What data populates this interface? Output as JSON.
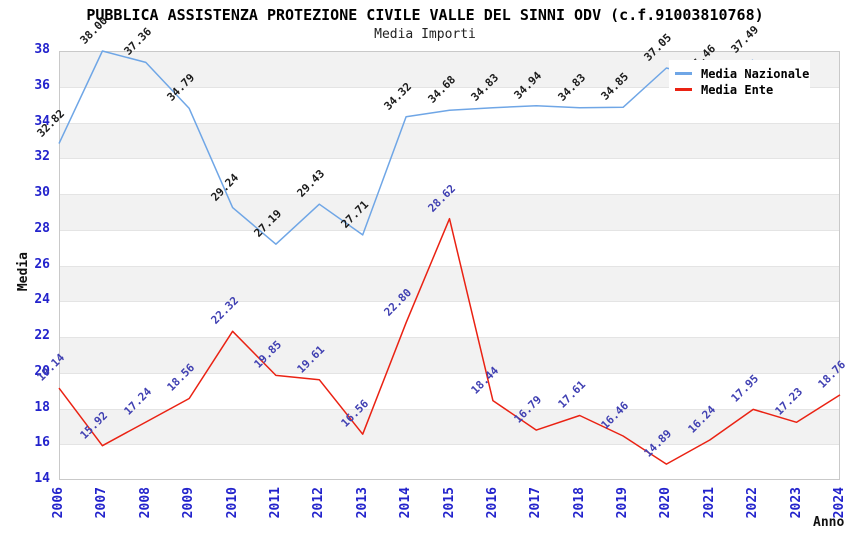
{
  "title": "PUBBLICA ASSISTENZA PROTEZIONE CIVILE VALLE DEL SINNI ODV (c.f.91003810768)",
  "subtitle": "Media Importi",
  "y_axis": {
    "label": "Media",
    "ticks": [
      38,
      36,
      34,
      32,
      30,
      28,
      26,
      24,
      22,
      20,
      18,
      16,
      14
    ]
  },
  "x_axis": {
    "label": "Anno",
    "ticks": [
      "2006",
      "2007",
      "2008",
      "2009",
      "2010",
      "2011",
      "2012",
      "2013",
      "2014",
      "2015",
      "2016",
      "2017",
      "2018",
      "2019",
      "2020",
      "2021",
      "2022",
      "2023",
      "2024"
    ]
  },
  "legend": {
    "items": [
      {
        "label": "Media Nazionale",
        "color": "#6fa6e6"
      },
      {
        "label": "Media Ente",
        "color": "#ea2213"
      }
    ]
  },
  "colors": {
    "nazionale_line": "#6fa6e6",
    "ente_line": "#ea2213",
    "tick_text": "#2323cc",
    "nazionale_label_text": "#1c1c1c",
    "ente_label_text": "#4040b2",
    "band_gray": "#f2f2f2",
    "band_white": "#ffffff"
  },
  "chart_data": {
    "type": "line",
    "title": "PUBBLICA ASSISTENZA PROTEZIONE CIVILE VALLE DEL SINNI ODV (c.f.91003810768)",
    "subtitle": "Media Importi",
    "xlabel": "Anno",
    "ylabel": "Media",
    "ylim": [
      14,
      38
    ],
    "grid": "horizontal-bands",
    "legend_position": "top-right",
    "x": [
      2006,
      2007,
      2008,
      2009,
      2010,
      2011,
      2012,
      2013,
      2014,
      2015,
      2016,
      2017,
      2018,
      2019,
      2020,
      2021,
      2022,
      2023,
      2024
    ],
    "series": [
      {
        "name": "Media Nazionale",
        "values": [
          32.82,
          38.0,
          37.36,
          34.79,
          29.24,
          27.19,
          29.43,
          27.71,
          34.32,
          34.68,
          34.83,
          34.94,
          34.83,
          34.85,
          37.05,
          36.46,
          37.49,
          null,
          null
        ]
      },
      {
        "name": "Media Ente",
        "values": [
          19.14,
          15.92,
          17.24,
          18.56,
          22.32,
          19.85,
          19.61,
          16.56,
          22.8,
          28.62,
          18.44,
          16.79,
          17.61,
          16.46,
          14.89,
          16.24,
          17.95,
          17.23,
          18.76
        ]
      }
    ]
  }
}
